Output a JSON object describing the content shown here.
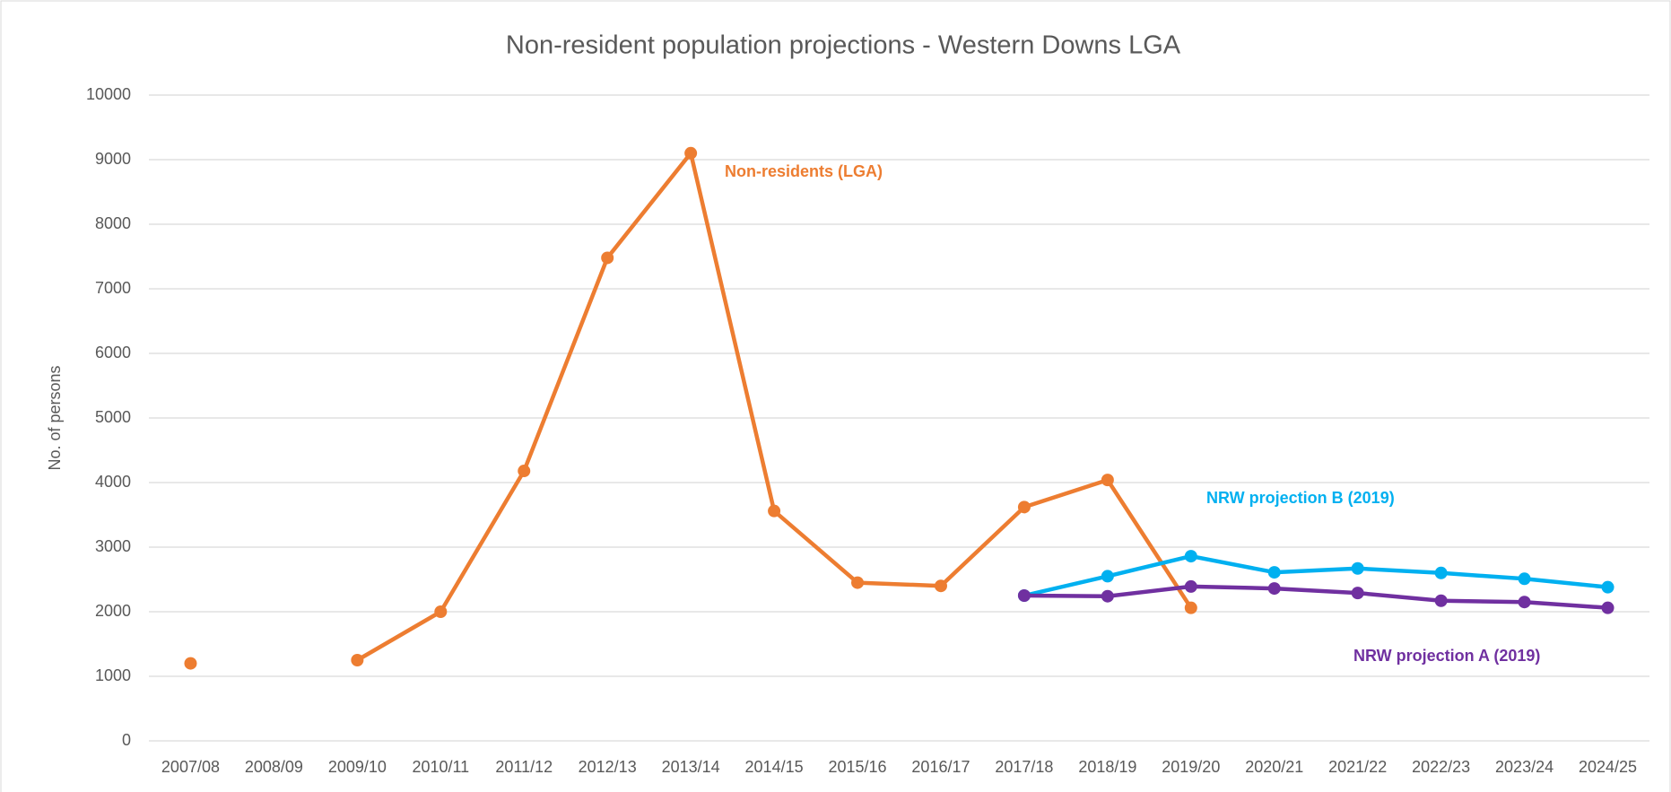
{
  "chart_data": {
    "type": "line",
    "title": "Non-resident population projections - Western Downs LGA",
    "y_label": "No. of persons",
    "categories": [
      "2007/08",
      "2008/09",
      "2009/10",
      "2010/11",
      "2011/12",
      "2012/13",
      "2013/14",
      "2014/15",
      "2015/16",
      "2016/17",
      "2017/18",
      "2018/19",
      "2019/20",
      "2020/21",
      "2021/22",
      "2022/23",
      "2023/24",
      "2024/25"
    ],
    "series": [
      {
        "name": "Non-residents (LGA)",
        "color": "#ed7d31",
        "values": [
          1200,
          null,
          1250,
          2000,
          4180,
          7480,
          9100,
          3560,
          2450,
          2400,
          3620,
          4040,
          2060,
          null,
          null,
          null,
          null,
          null
        ]
      },
      {
        "name": "NRW projection B (2019)",
        "color": "#00b0f0",
        "values": [
          null,
          null,
          null,
          null,
          null,
          null,
          null,
          null,
          null,
          null,
          2250,
          2550,
          2860,
          2610,
          2670,
          2600,
          2510,
          2380
        ]
      },
      {
        "name": "NRW projection A (2019)",
        "color": "#7030a0",
        "values": [
          null,
          null,
          null,
          null,
          null,
          null,
          null,
          null,
          null,
          null,
          2250,
          2240,
          2390,
          2360,
          2290,
          2170,
          2150,
          2060
        ]
      }
    ],
    "ylim": [
      0,
      10000
    ],
    "yticks": [
      0,
      1000,
      2000,
      3000,
      4000,
      5000,
      6000,
      7000,
      8000,
      9000,
      10000
    ],
    "grid": true
  }
}
